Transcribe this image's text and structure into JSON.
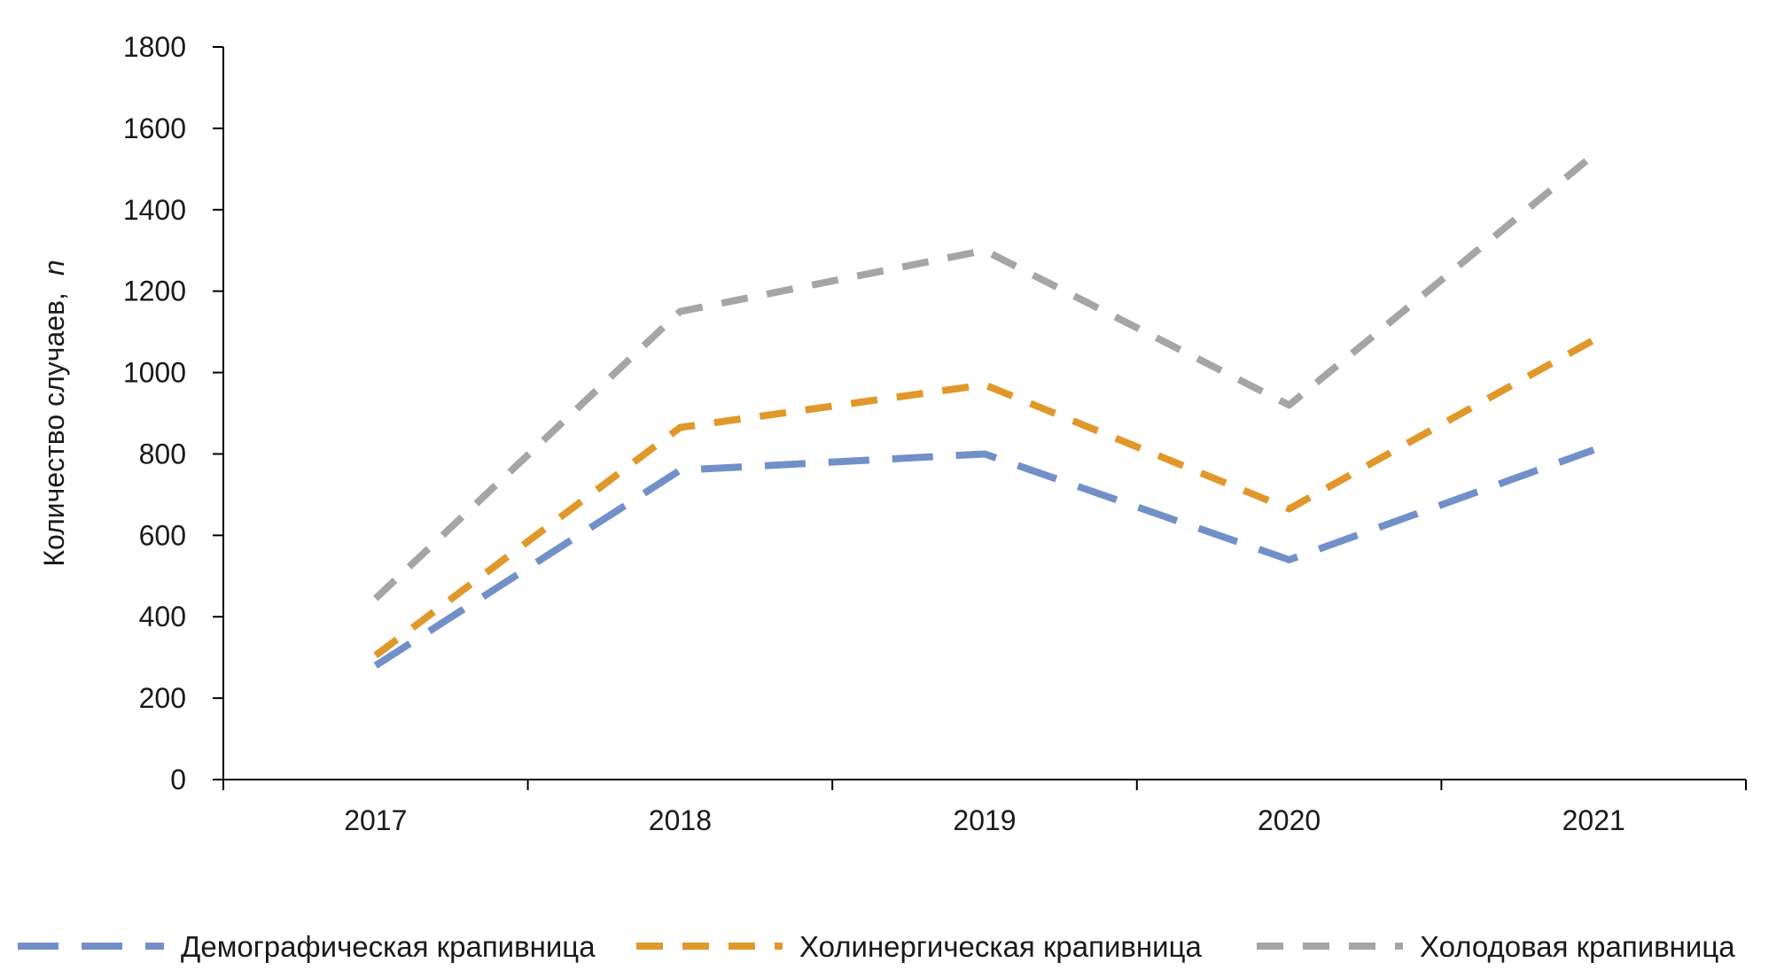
{
  "chart_data": {
    "type": "line",
    "title": "",
    "xlabel": "",
    "ylabel": "Количество случаев,",
    "ylabel_italic": "n",
    "categories": [
      "2017",
      "2018",
      "2019",
      "2020",
      "2021"
    ],
    "ylim": [
      0,
      1800
    ],
    "yticks": [
      0,
      200,
      400,
      600,
      800,
      1000,
      1200,
      1400,
      1600,
      1800
    ],
    "grid": false,
    "legend_position": "bottom",
    "series": [
      {
        "name": "Демографическая крапивница",
        "values": [
          280,
          760,
          800,
          540,
          810
        ],
        "color": "#7290c8",
        "dash": "long-dash"
      },
      {
        "name": "Холинергическая крапивница",
        "values": [
          305,
          865,
          970,
          665,
          1080
        ],
        "color": "#e0982a",
        "dash": "dash"
      },
      {
        "name": "Холодовая крапивница",
        "values": [
          445,
          1150,
          1300,
          920,
          1535
        ],
        "color": "#a5a5a5",
        "dash": "dash"
      }
    ]
  }
}
